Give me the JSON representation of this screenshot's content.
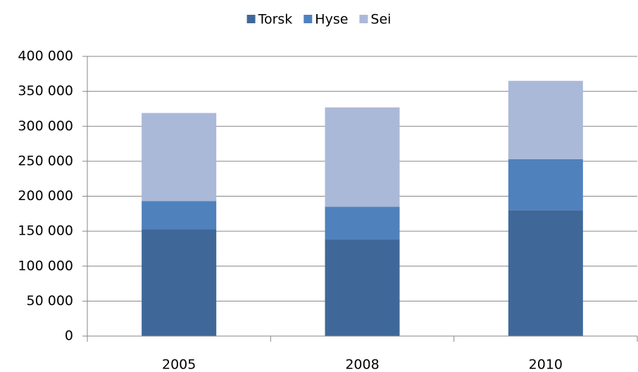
{
  "chart_data": {
    "type": "stacked_bar",
    "categories": [
      "2005",
      "2008",
      "2010"
    ],
    "series": [
      {
        "name": "Torsk",
        "color": "#3f6899",
        "values": [
          153000,
          138000,
          180000
        ]
      },
      {
        "name": "Hyse",
        "color": "#4f81bd",
        "values": [
          40000,
          47000,
          73000
        ]
      },
      {
        "name": "Sei",
        "color": "#aab9d8",
        "values": [
          126000,
          142000,
          112000
        ]
      }
    ],
    "ylim": [
      0,
      400000
    ],
    "yticks": [
      0,
      {
        "value": 50000,
        "label": "50 000"
      },
      {
        "value": 100000,
        "label": "100 000"
      },
      {
        "value": 150000,
        "label": "150 000"
      },
      {
        "value": 200000,
        "label": "200 000"
      },
      {
        "value": 250000,
        "label": "250 000"
      },
      {
        "value": 300000,
        "label": "300 000"
      },
      {
        "value": 350000,
        "label": "350 000"
      },
      {
        "value": 400000,
        "label": "400 000"
      }
    ],
    "grid": true,
    "legend": "top"
  }
}
